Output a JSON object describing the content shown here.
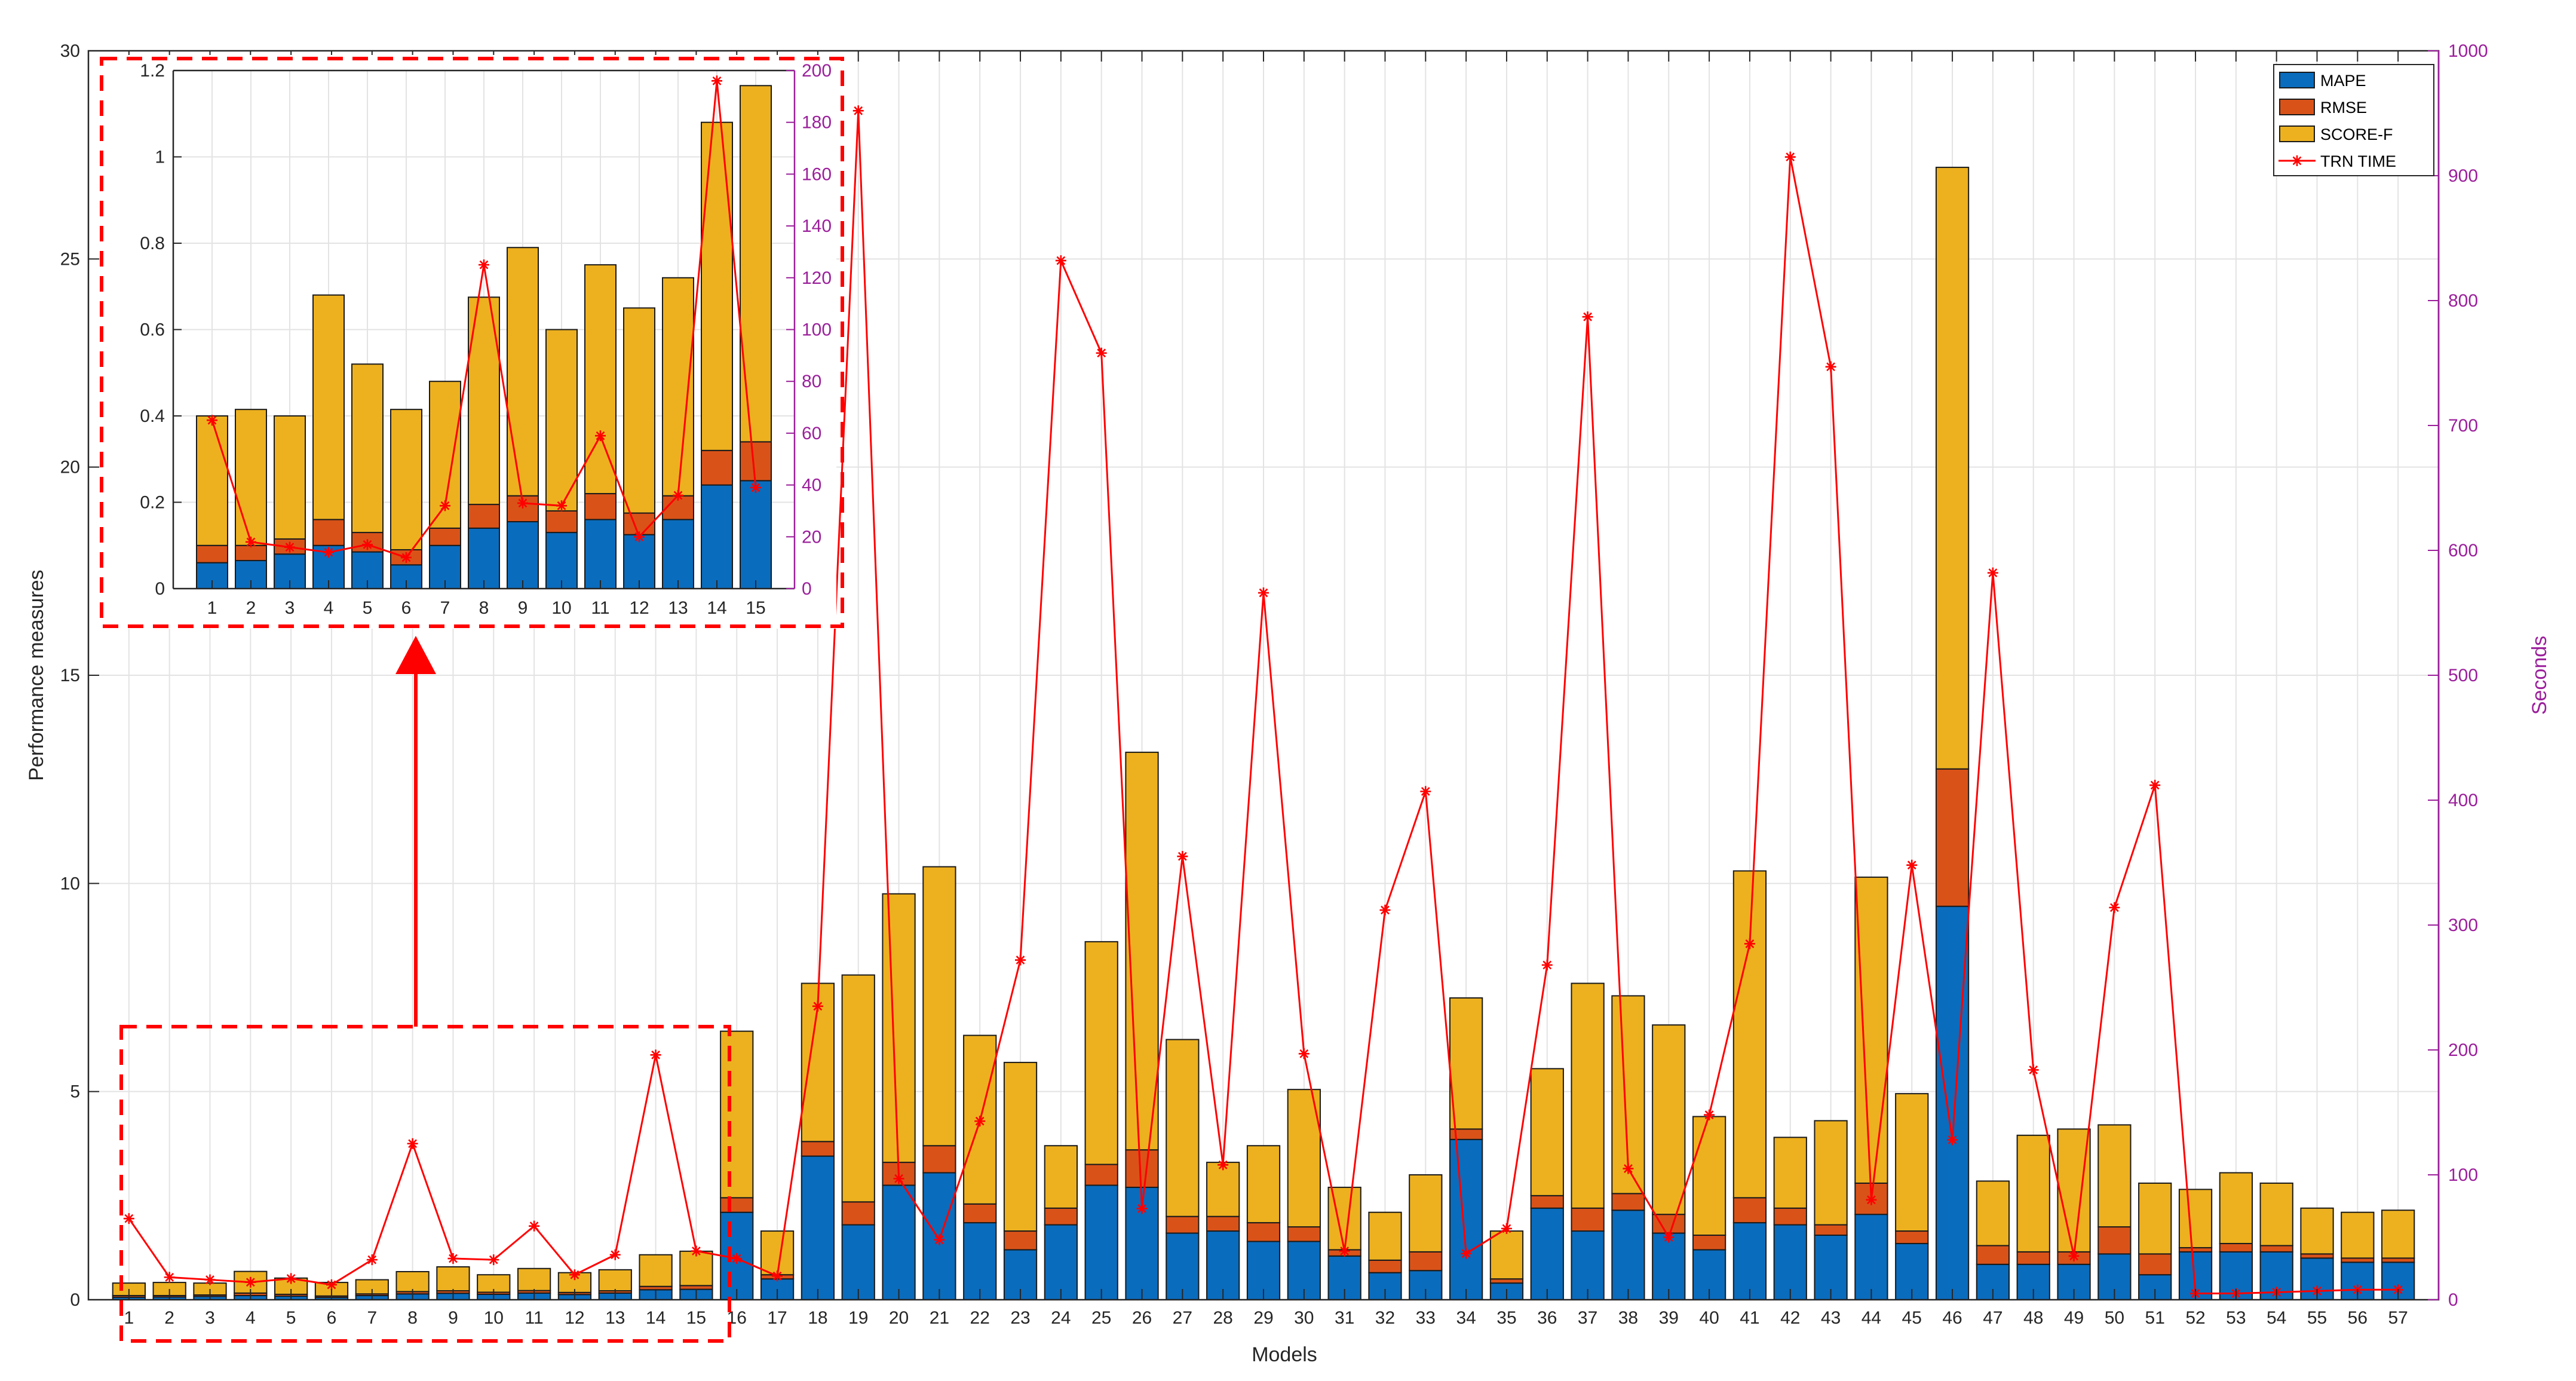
{
  "chart_data": {
    "type": "bar",
    "stacked": true,
    "xlabel": "Models",
    "ylabel": "Performance measures",
    "ylabel_right": "Seconds",
    "ylim": [
      0,
      30
    ],
    "yticks": [
      0,
      5,
      10,
      15,
      20,
      25,
      30
    ],
    "ylim_right": [
      0,
      1000
    ],
    "yticks_right": [
      0,
      100,
      200,
      300,
      400,
      500,
      600,
      700,
      800,
      900,
      1000
    ],
    "grid": true,
    "legend_position": "top-right",
    "categories": [
      "1",
      "2",
      "3",
      "4",
      "5",
      "6",
      "7",
      "8",
      "9",
      "10",
      "11",
      "12",
      "13",
      "14",
      "15",
      "16",
      "17",
      "18",
      "19",
      "20",
      "21",
      "22",
      "23",
      "24",
      "25",
      "26",
      "27",
      "28",
      "29",
      "30",
      "31",
      "32",
      "33",
      "34",
      "35",
      "36",
      "37",
      "38",
      "39",
      "40",
      "41",
      "42",
      "43",
      "44",
      "45",
      "46",
      "47",
      "48",
      "49",
      "50",
      "51",
      "52",
      "53",
      "54",
      "55",
      "56",
      "57"
    ],
    "series": [
      {
        "name": "MAPE",
        "axis": "left",
        "color": "#0a6cbd",
        "values": [
          0.06,
          0.065,
          0.08,
          0.1,
          0.085,
          0.055,
          0.1,
          0.14,
          0.155,
          0.13,
          0.16,
          0.125,
          0.16,
          0.24,
          0.25,
          2.1,
          0.5,
          3.45,
          1.8,
          2.75,
          3.05,
          1.85,
          1.2,
          1.8,
          2.75,
          2.7,
          1.6,
          1.65,
          1.4,
          1.4,
          1.05,
          0.65,
          0.7,
          3.85,
          0.4,
          2.2,
          1.65,
          2.15,
          1.6,
          1.2,
          1.85,
          1.8,
          1.55,
          2.05,
          1.35,
          9.45,
          0.85,
          0.85,
          0.85,
          1.1,
          0.6,
          1.15,
          1.15,
          1.15,
          1.0,
          0.9,
          0.9
        ]
      },
      {
        "name": "RMSE",
        "axis": "left",
        "color": "#d95319",
        "values": [
          0.04,
          0.035,
          0.035,
          0.06,
          0.045,
          0.035,
          0.04,
          0.055,
          0.06,
          0.05,
          0.06,
          0.05,
          0.055,
          0.08,
          0.09,
          0.35,
          0.1,
          0.35,
          0.55,
          0.55,
          0.65,
          0.45,
          0.45,
          0.4,
          0.5,
          0.9,
          0.4,
          0.35,
          0.45,
          0.35,
          0.15,
          0.3,
          0.45,
          0.25,
          0.1,
          0.3,
          0.55,
          0.4,
          0.45,
          0.35,
          0.6,
          0.4,
          0.25,
          0.75,
          0.3,
          3.3,
          0.45,
          0.3,
          0.3,
          0.65,
          0.5,
          0.1,
          0.2,
          0.15,
          0.1,
          0.1,
          0.1
        ]
      },
      {
        "name": "SCORE-F",
        "axis": "left",
        "color": "#edb120",
        "values": [
          0.3,
          0.315,
          0.285,
          0.52,
          0.39,
          0.325,
          0.34,
          0.48,
          0.575,
          0.42,
          0.53,
          0.475,
          0.505,
          0.76,
          0.825,
          4.0,
          1.05,
          3.8,
          5.45,
          6.45,
          6.7,
          4.05,
          4.05,
          1.5,
          5.35,
          9.55,
          4.25,
          1.3,
          1.85,
          3.3,
          1.5,
          1.15,
          1.85,
          3.15,
          1.15,
          3.05,
          5.4,
          4.75,
          4.55,
          2.85,
          7.85,
          1.7,
          2.5,
          7.35,
          3.3,
          14.45,
          1.55,
          2.8,
          2.95,
          2.45,
          1.7,
          1.4,
          1.7,
          1.5,
          1.1,
          1.1,
          1.15
        ]
      },
      {
        "name": "TRN TIME",
        "axis": "right",
        "type": "line",
        "color": "#ff0000",
        "values": [
          65,
          18,
          16,
          14,
          17,
          12,
          32,
          125,
          33,
          32,
          59,
          20,
          36,
          196,
          39,
          33,
          19,
          235,
          952,
          97,
          48,
          143,
          272,
          832,
          758,
          73,
          355,
          108,
          566,
          197,
          39,
          312,
          407,
          37,
          57,
          268,
          787,
          105,
          50,
          148,
          285,
          915,
          747,
          80,
          348,
          128,
          582,
          184,
          35,
          314,
          412,
          5,
          5,
          6,
          7,
          8,
          8
        ]
      }
    ],
    "inset": {
      "description": "Zoom of models 1-15",
      "ylim": [
        0,
        1.2
      ],
      "yticks": [
        "0",
        "0.2",
        "0.4",
        "0.6",
        "0.8",
        "1",
        "1.2"
      ],
      "ylim_right": [
        0,
        200
      ],
      "yticks_right": [
        "0",
        "20",
        "40",
        "60",
        "80",
        "100",
        "120",
        "140",
        "160",
        "180",
        "200"
      ],
      "categories": [
        "1",
        "2",
        "3",
        "4",
        "5",
        "6",
        "7",
        "8",
        "9",
        "10",
        "11",
        "12",
        "13",
        "14",
        "15"
      ]
    }
  },
  "axes": {
    "yticks_labels": [
      "0",
      "5",
      "10",
      "15",
      "20",
      "25",
      "30"
    ],
    "yticks_right_labels": [
      "0",
      "100",
      "200",
      "300",
      "400",
      "500",
      "600",
      "700",
      "800",
      "900",
      "1000"
    ]
  }
}
